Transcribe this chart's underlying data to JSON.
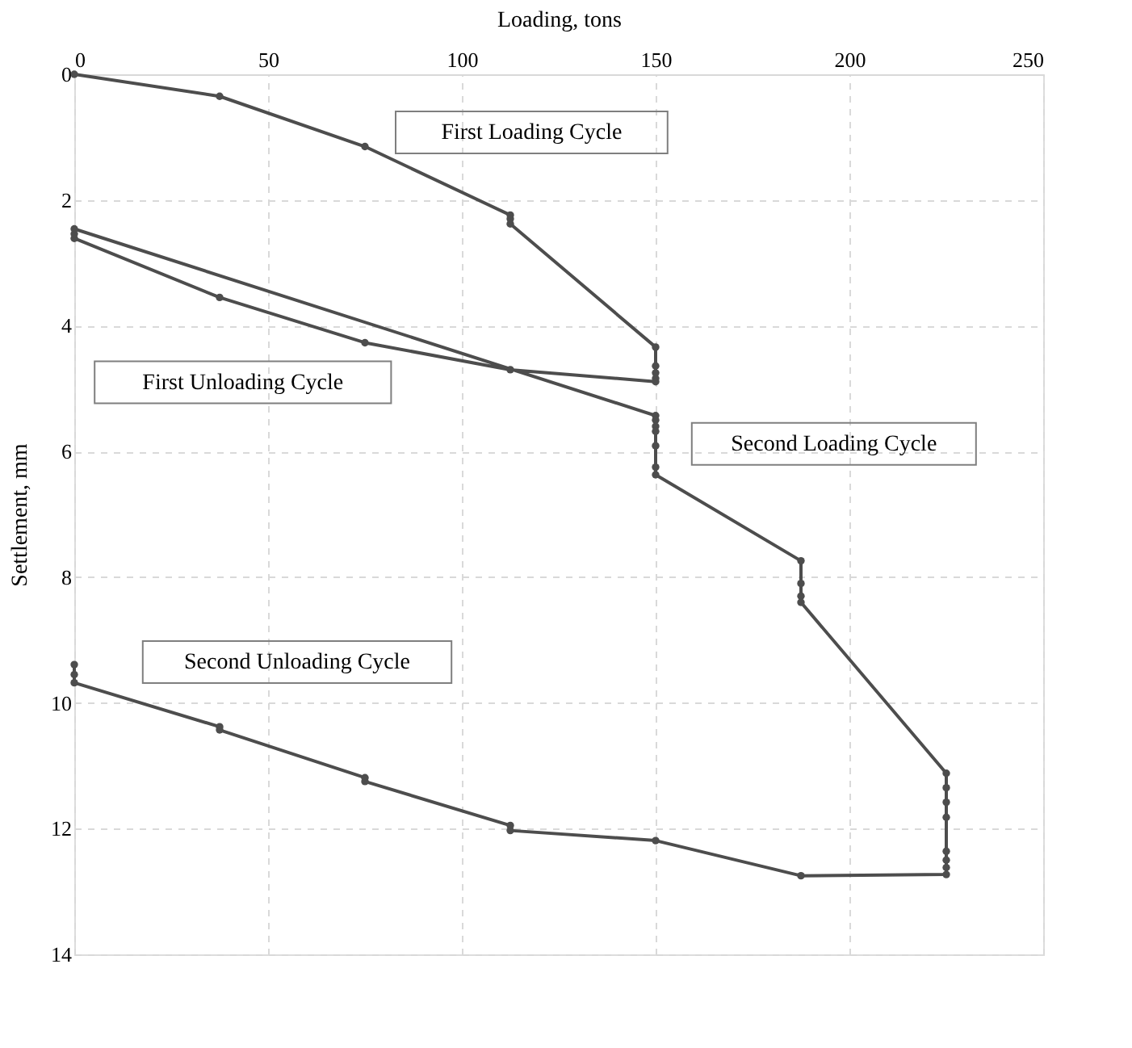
{
  "chart_data": {
    "type": "line",
    "xlabel": "Loading, tons",
    "ylabel": "Settlement, mm",
    "xlim": [
      0,
      250
    ],
    "xticks": [
      0,
      50,
      100,
      150,
      200,
      250
    ],
    "ylim": [
      14,
      0
    ],
    "yticks": [
      0,
      2,
      4,
      6,
      8,
      10,
      12,
      14
    ],
    "grid": true,
    "marker": "circle",
    "line_style": "solid",
    "series": [
      {
        "color": "#4d4d4d",
        "x": [
          0,
          37.5,
          75,
          112.5,
          112.5,
          112.5,
          150,
          150,
          150,
          150,
          150,
          112.5,
          75,
          37.5,
          0,
          0,
          0,
          150,
          150,
          150,
          150,
          150,
          150,
          150,
          187.5,
          187.5,
          187.5,
          187.5,
          225,
          225,
          225,
          225,
          225,
          225,
          225,
          225,
          187.5,
          150,
          112.5,
          112.5,
          75,
          75,
          37.5,
          37.5,
          0,
          0,
          0
        ],
        "values": [
          0,
          0.35,
          1.15,
          2.24,
          2.3,
          2.38,
          4.34,
          4.64,
          4.75,
          4.84,
          4.89,
          4.7,
          4.27,
          3.55,
          2.61,
          2.54,
          2.46,
          5.43,
          5.5,
          5.6,
          5.68,
          5.91,
          6.25,
          6.37,
          7.74,
          8.1,
          8.3,
          8.4,
          11.12,
          11.35,
          11.58,
          11.82,
          12.36,
          12.5,
          12.62,
          12.73,
          12.75,
          12.19,
          12.03,
          11.95,
          11.25,
          11.19,
          10.43,
          10.38,
          9.68,
          9.55,
          9.39
        ]
      }
    ],
    "annotations": [
      "First Loading Cycle",
      "First Unloading Cycle",
      "Second Loading Cycle",
      "Second Unloading Cycle"
    ]
  }
}
